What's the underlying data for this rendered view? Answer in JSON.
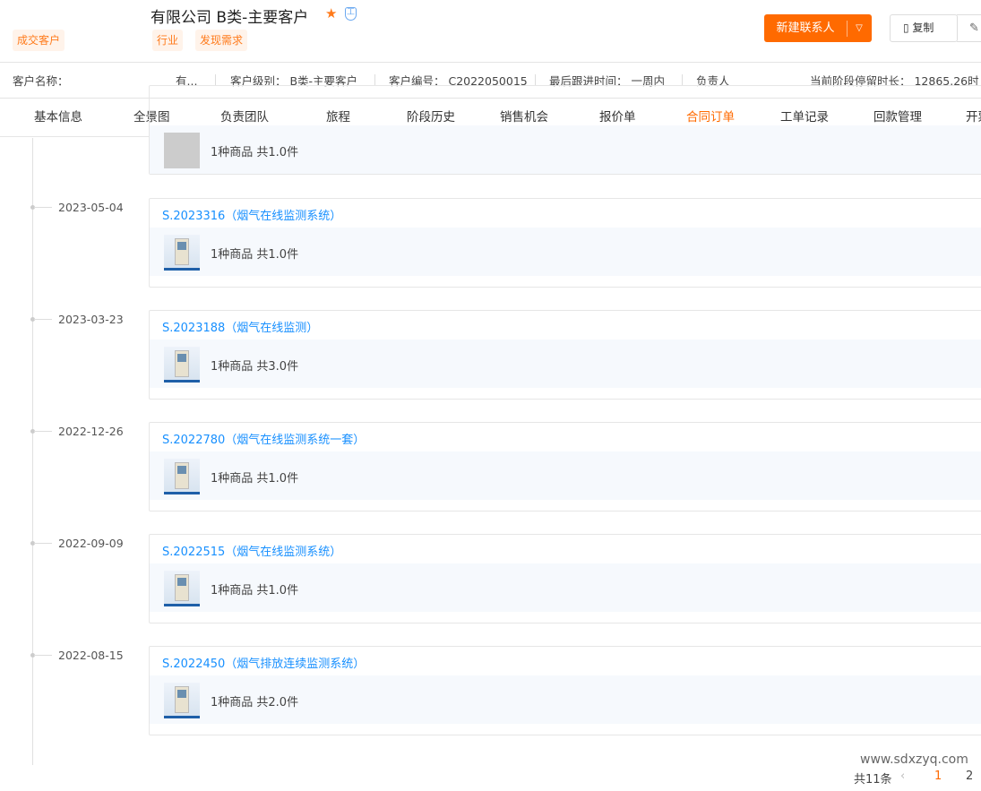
{
  "header": {
    "title": "有限公司 B类-主要客户",
    "tags": [
      "成交客户",
      "行业",
      "发现需求"
    ],
    "new_contact": "新建联系人",
    "copy": "复制"
  },
  "info": {
    "name_label": "客户名称：",
    "name_value": "有...",
    "level": "客户级别： B类-主要客户",
    "code": "客户编号： C2022050015",
    "last_follow": "最后跟进时间： 一周内",
    "owner_label": "负责人",
    "stay": "当前阶段停留时长： 12865.26时"
  },
  "tabs": [
    "基本信息",
    "全景图",
    "负责团队",
    "旅程",
    "阶段历史",
    "销售机会",
    "报价单",
    "合同订单",
    "工单记录",
    "回款管理",
    "开票"
  ],
  "active_tab": "合同订单",
  "partial_card": {
    "count": "1种商品 共1.0件"
  },
  "orders": [
    {
      "date": "2023-05-04",
      "title": "S.2023316（烟气在线监测系统）",
      "count": "1种商品 共1.0件"
    },
    {
      "date": "2023-03-23",
      "title": "S.2023188（烟气在线监测）",
      "count": "1种商品 共3.0件"
    },
    {
      "date": "2022-12-26",
      "title": "S.2022780（烟气在线监测系统一套）",
      "count": "1种商品 共1.0件"
    },
    {
      "date": "2022-09-09",
      "title": "S.2022515（烟气在线监测系统）",
      "count": "1种商品 共1.0件"
    },
    {
      "date": "2022-08-15",
      "title": "S.2022450（烟气排放连续监测系统）",
      "count": "1种商品 共2.0件"
    }
  ],
  "footer": {
    "website": "www.sdxzyq.com",
    "total": "共11条",
    "pages": [
      "1",
      "2"
    ]
  },
  "colors": {
    "accent": "#ff6a00",
    "link": "#1890ff"
  }
}
